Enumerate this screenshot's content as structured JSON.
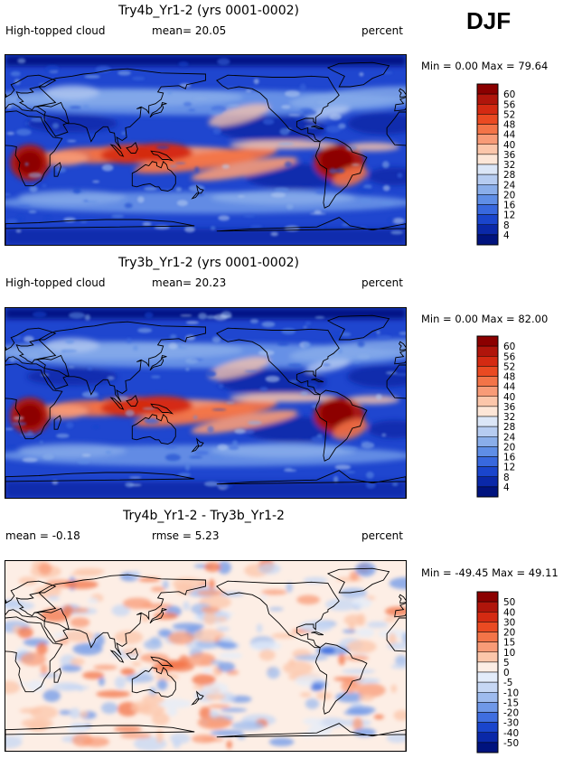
{
  "season": "DJF",
  "panels": [
    {
      "title": "Try4b_Yr1-2 (yrs 0001-0002)",
      "left_label": "High-topped cloud",
      "center_label": "mean=  20.05",
      "right_label": "percent",
      "minmax": "Min =    0.00 Max =  79.64",
      "kind": "abs"
    },
    {
      "title": "Try3b_Yr1-2 (yrs 0001-0002)",
      "left_label": "High-topped cloud",
      "center_label": "mean=  20.23",
      "right_label": "percent",
      "minmax": "Min =    0.00 Max =  82.00",
      "kind": "abs"
    },
    {
      "title": "Try4b_Yr1-2 - Try3b_Yr1-2",
      "left_label": "mean =  -0.18",
      "center_label": "rmse =   5.23",
      "right_label": "percent",
      "minmax": "Min = -49.45 Max =  49.11",
      "kind": "diff"
    }
  ],
  "chart_data": [
    {
      "type": "heatmap",
      "title": "Try4b_Yr1-2 (yrs 0001-0002)",
      "variable": "High-topped cloud",
      "units": "percent",
      "mean": 20.05,
      "min": 0.0,
      "max": 79.64,
      "colorbar_levels": [
        "60",
        "56",
        "52",
        "48",
        "44",
        "40",
        "36",
        "32",
        "28",
        "24",
        "20",
        "16",
        "12",
        "8",
        "4"
      ],
      "colorbar_colors": [
        "#8b0000",
        "#b0150b",
        "#d42a12",
        "#ea4a22",
        "#f37448",
        "#f89b77",
        "#fcc6aa",
        "#fde6d7",
        "#dbe6f7",
        "#b6ccf1",
        "#8aaeea",
        "#5f8ee6",
        "#3868de",
        "#1a45cc",
        "#0a28a8",
        "#00137e"
      ]
    },
    {
      "type": "heatmap",
      "title": "Try3b_Yr1-2 (yrs 0001-0002)",
      "variable": "High-topped cloud",
      "units": "percent",
      "mean": 20.23,
      "min": 0.0,
      "max": 82.0,
      "colorbar_levels": [
        "60",
        "56",
        "52",
        "48",
        "44",
        "40",
        "36",
        "32",
        "28",
        "24",
        "20",
        "16",
        "12",
        "8",
        "4"
      ],
      "colorbar_colors": [
        "#8b0000",
        "#b0150b",
        "#d42a12",
        "#ea4a22",
        "#f37448",
        "#f89b77",
        "#fcc6aa",
        "#fde6d7",
        "#dbe6f7",
        "#b6ccf1",
        "#8aaeea",
        "#5f8ee6",
        "#3868de",
        "#1a45cc",
        "#0a28a8",
        "#00137e"
      ]
    },
    {
      "type": "heatmap",
      "title": "Try4b_Yr1-2 - Try3b_Yr1-2",
      "units": "percent",
      "mean": -0.18,
      "rmse": 5.23,
      "min": -49.45,
      "max": 49.11,
      "colorbar_levels": [
        "50",
        "40",
        "30",
        "20",
        "15",
        "10",
        "5",
        "0",
        "-5",
        "-10",
        "-15",
        "-20",
        "-30",
        "-40",
        "-50"
      ],
      "colorbar_colors": [
        "#8b0000",
        "#b0150b",
        "#d42a12",
        "#ea4a22",
        "#f37448",
        "#f89b77",
        "#fcc6aa",
        "#fdeee5",
        "#e3ecfa",
        "#c6d7f4",
        "#9ebbee",
        "#6f98e8",
        "#3f6ee0",
        "#1a45cc",
        "#0a28a8",
        "#00137e"
      ]
    }
  ]
}
